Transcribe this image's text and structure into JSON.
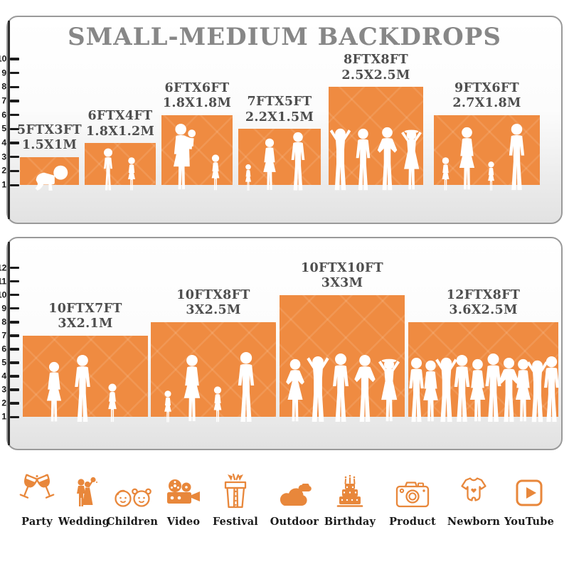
{
  "title": "SMALL-MEDIUM BACKDROPS",
  "panels": [
    {
      "name": "small backdrops",
      "ruler_max": 10,
      "backdrops": [
        {
          "size_ft": "5FTX3FT",
          "size_m": "1.5X1M",
          "w_ft": 5,
          "h_ft": 3
        },
        {
          "size_ft": "6FTX4FT",
          "size_m": "1.8X1.2M",
          "w_ft": 6,
          "h_ft": 4
        },
        {
          "size_ft": "6FTX6FT",
          "size_m": "1.8X1.8M",
          "w_ft": 6,
          "h_ft": 6
        },
        {
          "size_ft": "7FTX5FT",
          "size_m": "2.2X1.5M",
          "w_ft": 7,
          "h_ft": 5
        },
        {
          "size_ft": "8FTX8FT",
          "size_m": "2.5X2.5M",
          "w_ft": 8,
          "h_ft": 8
        },
        {
          "size_ft": "9FTX6FT",
          "size_m": "2.7X1.8M",
          "w_ft": 9,
          "h_ft": 6
        }
      ]
    },
    {
      "name": "medium backdrops",
      "ruler_max": 12,
      "backdrops": [
        {
          "size_ft": "10FTX7FT",
          "size_m": "3X2.1M",
          "w_ft": 10,
          "h_ft": 7
        },
        {
          "size_ft": "10FTX8FT",
          "size_m": "3X2.5M",
          "w_ft": 10,
          "h_ft": 8
        },
        {
          "size_ft": "10FTX10FT",
          "size_m": "3X3M",
          "w_ft": 10,
          "h_ft": 10
        },
        {
          "size_ft": "12FTX8FT",
          "size_m": "3.6X2.5M",
          "w_ft": 12,
          "h_ft": 8
        }
      ]
    }
  ],
  "use_cases": [
    {
      "label": "Party",
      "icon": "party-icon"
    },
    {
      "label": "Wedding",
      "icon": "wedding-icon"
    },
    {
      "label": "Children",
      "icon": "children-icon"
    },
    {
      "label": "Video",
      "icon": "video-icon"
    },
    {
      "label": "Festival",
      "icon": "festival-icon"
    },
    {
      "label": "Outdoor",
      "icon": "outdoor-icon"
    },
    {
      "label": "Birthday",
      "icon": "birthday-icon"
    },
    {
      "label": "Product",
      "icon": "product-icon"
    },
    {
      "label": "Newborn",
      "icon": "newborn-icon"
    },
    {
      "label": "YouTube",
      "icon": "youtube-icon"
    }
  ],
  "colors": {
    "backdrop_orange": "#EF8B41",
    "icon_orange": "#E8873B",
    "title_gray": "#878787",
    "label_gray": "#4E4E4E"
  }
}
